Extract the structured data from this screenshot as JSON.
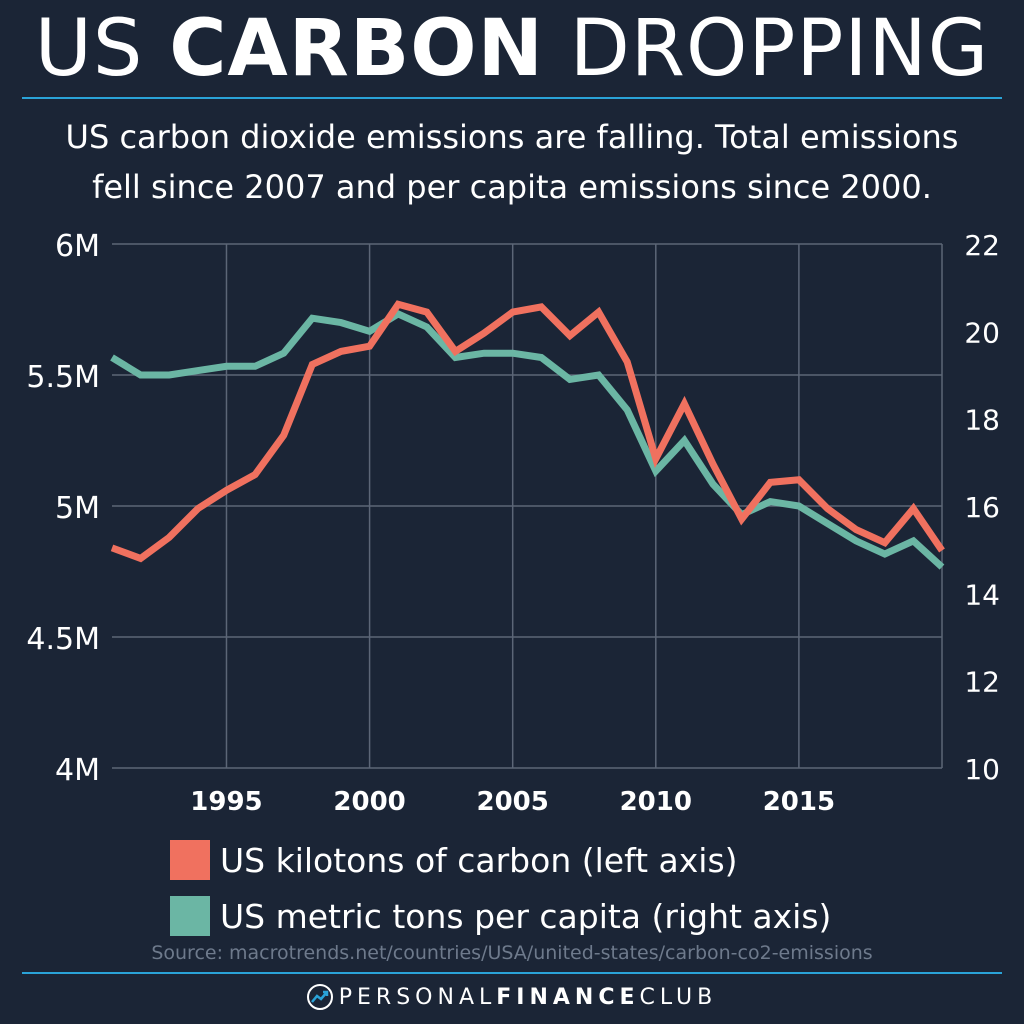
{
  "header": {
    "title_light_1": "US ",
    "title_bold": "CARBON",
    "title_light_2": " DROPPING",
    "subtitle_line1": "US carbon dioxide emissions are falling. Total emissions",
    "subtitle_line2": "fell since 2007 and per capita emissions since 2000."
  },
  "colors": {
    "background": "#1b2536",
    "total_series": "#f0715f",
    "per_capita_series": "#6bb6a4",
    "grid": "#5c6677",
    "rule": "#2aa3d8"
  },
  "chart_data": {
    "type": "line",
    "x": [
      1991,
      1992,
      1993,
      1994,
      1995,
      1996,
      1997,
      1998,
      1999,
      2000,
      2001,
      2002,
      2003,
      2004,
      2005,
      2006,
      2007,
      2008,
      2009,
      2010,
      2011,
      2012,
      2013,
      2014,
      2015,
      2016,
      2017,
      2018,
      2019,
      2020
    ],
    "series": [
      {
        "name": "US kilotons of carbon (left axis)",
        "axis": "left",
        "color": "#f0715f",
        "values": [
          4840000,
          4800000,
          4880000,
          4990000,
          5060000,
          5120000,
          5270000,
          5540000,
          5590000,
          5610000,
          5770000,
          5740000,
          5590000,
          5660000,
          5740000,
          5760000,
          5650000,
          5740000,
          5550000,
          5180000,
          5390000,
          5160000,
          4950000,
          5090000,
          5100000,
          4990000,
          4910000,
          4860000,
          4990000,
          4830000
        ]
      },
      {
        "name": "US metric tons per capita (right axis)",
        "axis": "right",
        "color": "#6bb6a4",
        "values": [
          19.4,
          19.0,
          19.0,
          19.1,
          19.2,
          19.2,
          19.5,
          20.3,
          20.2,
          20.0,
          20.4,
          20.1,
          19.4,
          19.5,
          19.5,
          19.4,
          18.9,
          19.0,
          18.2,
          16.8,
          17.5,
          16.5,
          15.8,
          16.1,
          16.0,
          15.6,
          15.2,
          14.9,
          15.2,
          14.6
        ]
      }
    ],
    "xlim": [
      1991,
      2020
    ],
    "x_ticks": [
      1995,
      2000,
      2005,
      2010,
      2015
    ],
    "x_tick_labels": [
      "1995",
      "2000",
      "2005",
      "2010",
      "2015"
    ],
    "ylim_left": [
      4000000,
      6000000
    ],
    "y_left_ticks": [
      4000000,
      4500000,
      5000000,
      5500000,
      6000000
    ],
    "y_left_tick_labels": [
      "4M",
      "4.5M",
      "5M",
      "5.5M",
      "6M"
    ],
    "ylim_right": [
      10,
      22
    ],
    "y_right_ticks": [
      10,
      12,
      14,
      16,
      18,
      20,
      22
    ],
    "y_right_tick_labels": [
      "10",
      "12",
      "14",
      "16",
      "18",
      "20",
      "22"
    ],
    "grid": true,
    "legend_position": "bottom"
  },
  "footer": {
    "source": "Source:  macrotrends.net/countries/USA/united-states/carbon-co2-emissions",
    "brand_light_1": "PERSONAL",
    "brand_bold": "FINANCE",
    "brand_light_2": "CLUB",
    "brand_icon": "trend-arrow-icon"
  }
}
